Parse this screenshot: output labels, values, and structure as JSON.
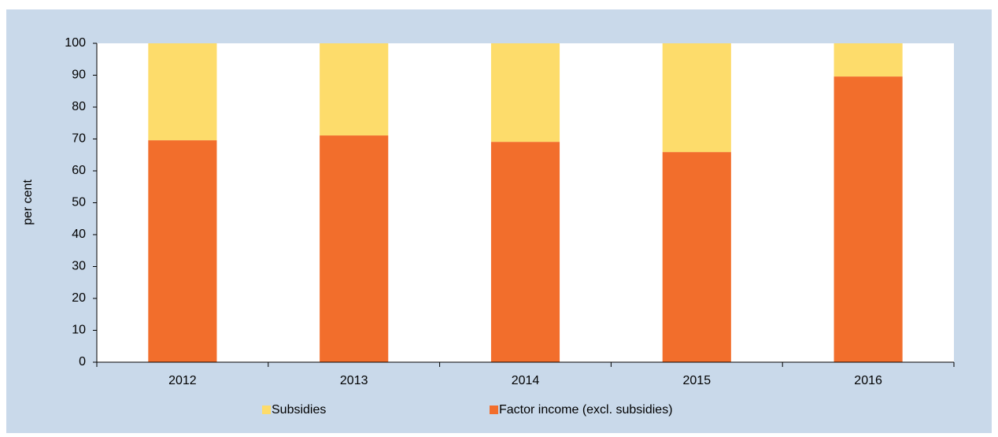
{
  "chart_data": {
    "type": "stacked_bar",
    "y_label": "per cent",
    "categories": [
      "2012",
      "2013",
      "2014",
      "2015",
      "2016"
    ],
    "series": [
      {
        "name": "Factor income (excl. subsidies)",
        "color": "#f26e2c",
        "values": [
          69.6,
          71.1,
          69.1,
          65.9,
          89.6
        ]
      },
      {
        "name": "Subsidies",
        "color": "#fddc6b",
        "values": [
          30.4,
          28.9,
          30.9,
          34.1,
          10.4
        ]
      }
    ],
    "legend_order": [
      1,
      0
    ],
    "ylim": [
      0,
      100
    ],
    "yticks": [
      0,
      10,
      20,
      30,
      40,
      50,
      60,
      70,
      80,
      90,
      100
    ],
    "grid": false
  }
}
